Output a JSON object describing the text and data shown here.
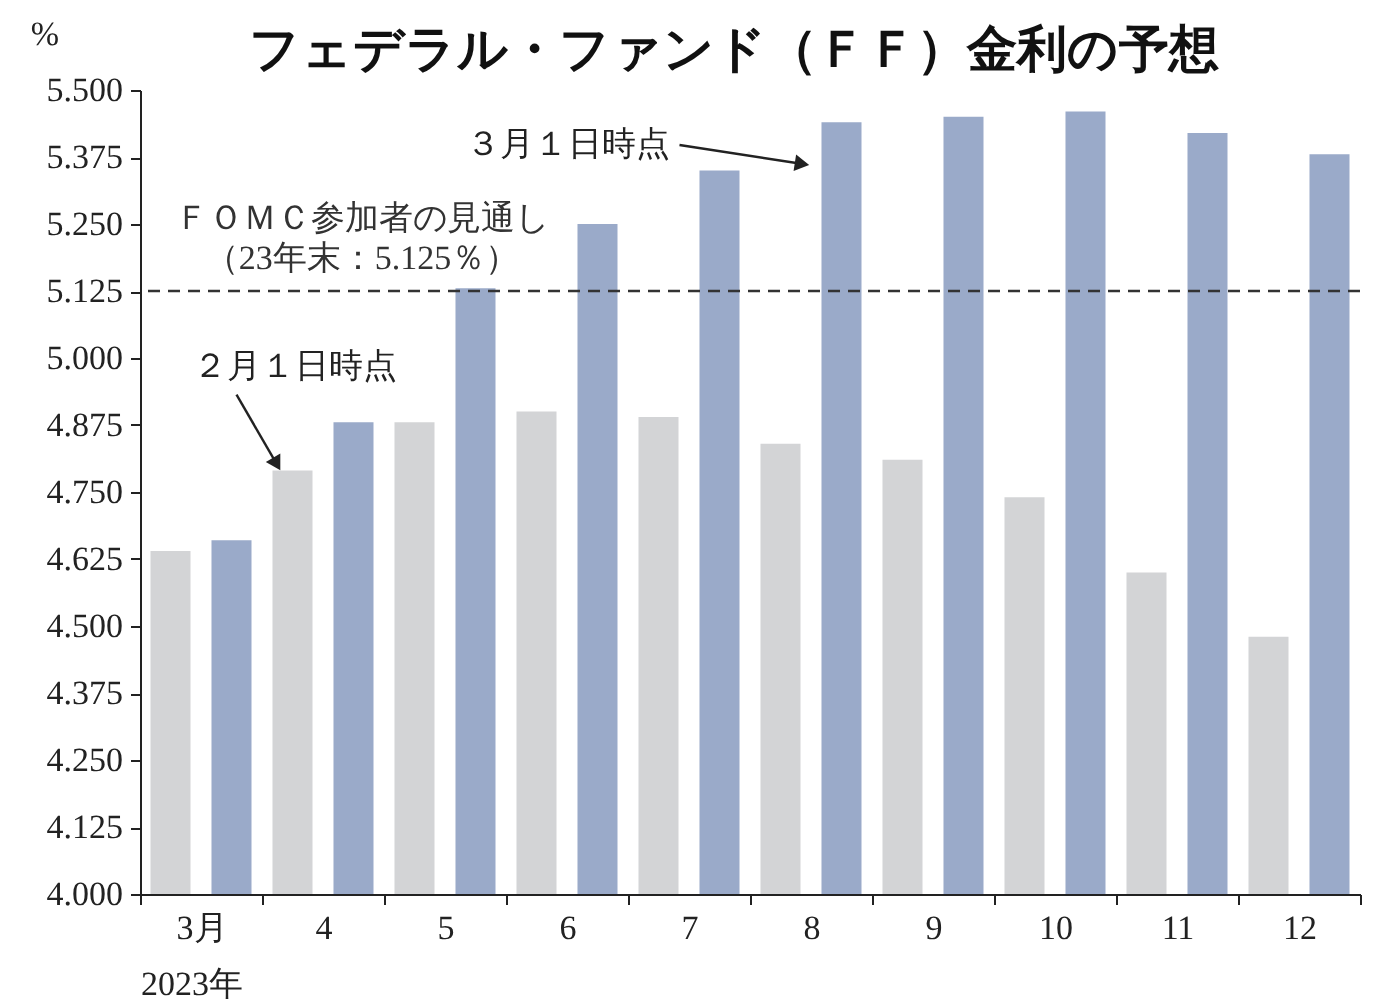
{
  "chart_data": {
    "type": "bar",
    "title": "フェデラル・ファンド（ＦＦ）金利の予想",
    "ylabel": "%",
    "xlabel": "2023年",
    "categories": [
      "3月",
      "4",
      "5",
      "6",
      "7",
      "8",
      "9",
      "10",
      "11",
      "12"
    ],
    "series": [
      {
        "color": "#d3d4d6",
        "values": [
          4.64,
          4.79,
          4.88,
          4.9,
          4.89,
          4.84,
          4.81,
          4.74,
          4.6,
          4.48
        ]
      },
      {
        "color": "#9aaac9",
        "values": [
          4.66,
          4.88,
          5.13,
          5.25,
          5.35,
          5.44,
          5.45,
          5.46,
          5.42,
          5.38
        ]
      }
    ],
    "ylim": [
      4.0,
      5.5
    ],
    "yticks": [
      {
        "value": 4.0,
        "label": "4.000"
      },
      {
        "value": 4.125,
        "label": "4.125"
      },
      {
        "value": 4.25,
        "label": "4.250"
      },
      {
        "value": 4.375,
        "label": "4.375"
      },
      {
        "value": 4.5,
        "label": "4.500"
      },
      {
        "value": 4.625,
        "label": "4.625"
      },
      {
        "value": 4.75,
        "label": "4.750"
      },
      {
        "value": 4.875,
        "label": "4.875"
      },
      {
        "value": 5.0,
        "label": "5.000"
      },
      {
        "value": 5.125,
        "label": "5.125"
      },
      {
        "value": 5.25,
        "label": "5.250"
      },
      {
        "value": 5.375,
        "label": "5.375"
      },
      {
        "value": 5.5,
        "label": "5.500"
      }
    ],
    "ref_lines": [
      {
        "axis": "y",
        "value": 5.125,
        "label": "ＦＯＭＣ参加者の見通し（23年末：5.125％）",
        "color": "#333333",
        "line_style": "dashed"
      }
    ],
    "annotations": [
      {
        "text": "２月１日時点",
        "x": "4",
        "y": 4.79
      },
      {
        "text": "３月１日時点",
        "x": "8",
        "y": 5.36
      }
    ]
  }
}
